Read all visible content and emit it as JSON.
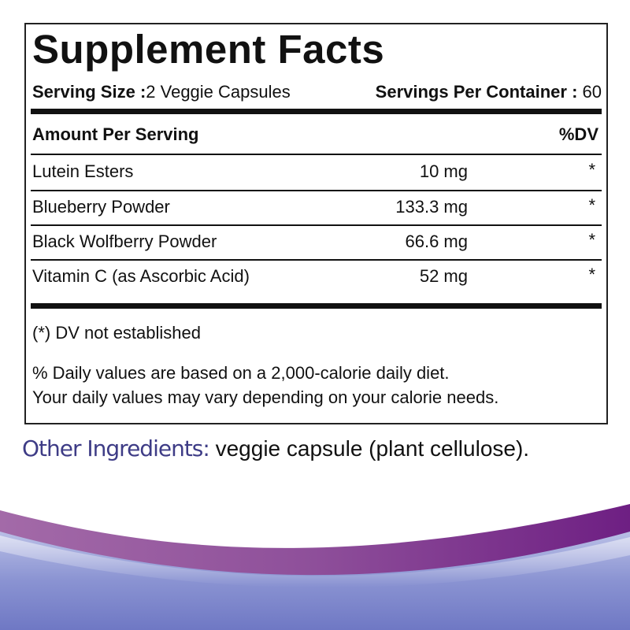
{
  "title": "Supplement Facts",
  "serving": {
    "size_label": "Serving Size :",
    "size_value": "2 Veggie Capsules",
    "per_container_label": "Servings Per Container :",
    "per_container_value": " 60"
  },
  "header": {
    "amount_label": "Amount Per Serving",
    "dv_label": "%DV"
  },
  "rows": [
    {
      "name": "Lutein Esters",
      "amount": "10 mg",
      "dv": "*"
    },
    {
      "name": "Blueberry Powder",
      "amount": "133.3 mg",
      "dv": "*"
    },
    {
      "name": "Black Wolfberry Powder",
      "amount": "66.6 mg",
      "dv": "*"
    },
    {
      "name": "Vitamin C (as Ascorbic Acid)",
      "amount": "52 mg",
      "dv": "*"
    }
  ],
  "notes": {
    "dv_note": "(*) DV not established",
    "daily_line1": "% Daily values are based on a 2,000-calorie daily diet.",
    "daily_line2": "Your daily values may vary depending on your calorie needs."
  },
  "other_ingredients": {
    "label": "Other Ingredients:",
    "value": " veggie capsule (plant cellulose)."
  },
  "colors": {
    "label_color": "#3e3c86",
    "wave_purple": "#7a3a8c",
    "wave_blue": "#7b86c9"
  }
}
